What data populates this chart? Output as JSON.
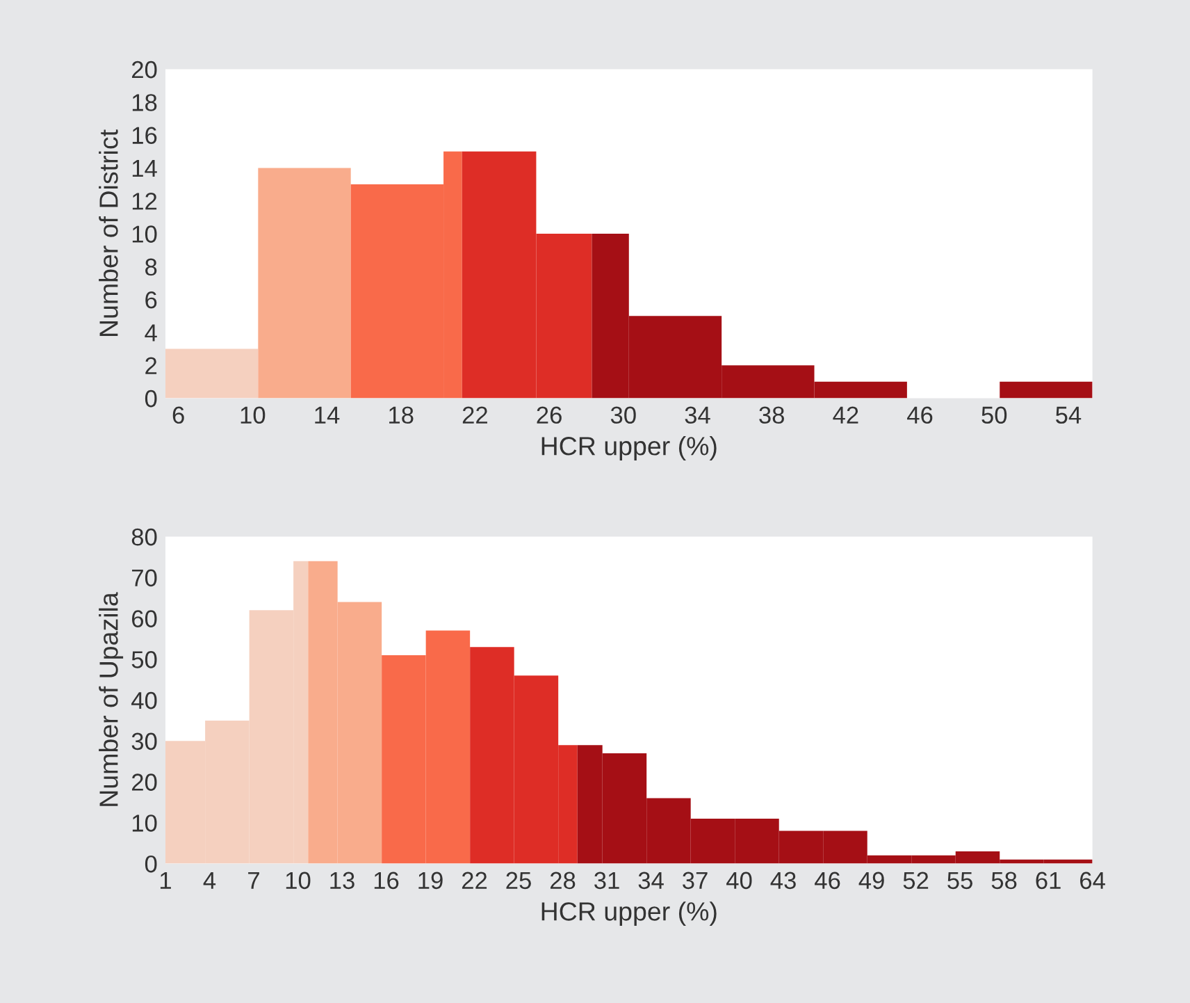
{
  "chart_data": [
    {
      "type": "histogram",
      "xlabel": "HCR upper (%)",
      "ylabel": "Number of District",
      "bins": [
        5.3,
        10.3,
        15.3,
        20.3,
        21.3,
        25.3,
        28.3,
        30.3,
        35.3,
        40.3,
        45.3,
        50.3,
        55.3
      ],
      "values": [
        3,
        14,
        13,
        15,
        15,
        10,
        10,
        5,
        2,
        1,
        0,
        1
      ],
      "colors": [
        "#f5d0bf",
        "#f9ac8c",
        "#f96a4a",
        "#f96a4a",
        "#de2d26",
        "#de2d26",
        "#a50f15",
        "#a50f15",
        "#a50f15",
        "#a50f15",
        "#a50f15",
        "#a50f15"
      ],
      "xlim": [
        5.3,
        55.3
      ],
      "xticks": [
        6,
        10,
        14,
        18,
        22,
        26,
        30,
        34,
        38,
        42,
        46,
        50,
        54
      ],
      "ylim": [
        0,
        20
      ],
      "yticks": [
        0,
        2,
        4,
        6,
        8,
        10,
        12,
        14,
        16,
        18,
        20
      ],
      "grid": false,
      "legend": false
    },
    {
      "type": "histogram",
      "xlabel": "HCR upper (%)",
      "ylabel": "Number of Upazila",
      "bins": [
        1,
        3.7,
        6.7,
        9.7,
        10.7,
        12.7,
        15.7,
        18.7,
        21.7,
        24.7,
        27.7,
        29,
        30.7,
        33.7,
        36.7,
        39.7,
        42.7,
        45.7,
        48.7,
        51.7,
        54.7,
        57.7,
        60.7,
        64
      ],
      "values": [
        30,
        35,
        62,
        74,
        74,
        64,
        51,
        57,
        53,
        46,
        29,
        29,
        27,
        16,
        11,
        11,
        8,
        8,
        2,
        2,
        3,
        1,
        1
      ],
      "colors": [
        "#f5d0bf",
        "#f5d0bf",
        "#f5d0bf",
        "#f5d0bf",
        "#f9ac8c",
        "#f9ac8c",
        "#f96a4a",
        "#f96a4a",
        "#de2d26",
        "#de2d26",
        "#de2d26",
        "#a50f15",
        "#a50f15",
        "#a50f15",
        "#a50f15",
        "#a50f15",
        "#a50f15",
        "#a50f15",
        "#a50f15",
        "#a50f15",
        "#a50f15",
        "#a50f15",
        "#a50f15"
      ],
      "xlim": [
        1,
        64
      ],
      "xticks": [
        1,
        4,
        7,
        10,
        13,
        16,
        19,
        22,
        25,
        28,
        31,
        34,
        37,
        40,
        43,
        46,
        49,
        52,
        55,
        58,
        61,
        64
      ],
      "ylim": [
        0,
        80
      ],
      "yticks": [
        0,
        10,
        20,
        30,
        40,
        50,
        60,
        70,
        80
      ],
      "grid": false,
      "legend": false
    }
  ]
}
